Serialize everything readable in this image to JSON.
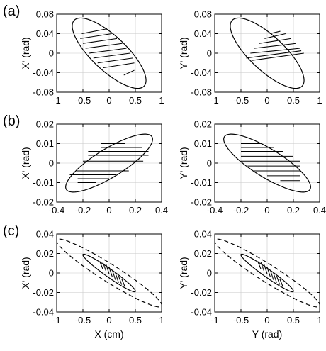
{
  "rows": [
    {
      "label": "(a)",
      "ylabels": [
        "X' (rad)",
        "Y' (rad)"
      ],
      "xlabels": [
        "",
        ""
      ],
      "xlim": [
        -1,
        1
      ],
      "ylim": [
        -0.08,
        0.08
      ],
      "xticks": [
        "-1",
        "-0.5",
        "0",
        "0.5",
        "1"
      ],
      "yticks": [
        "0.08",
        "0.04",
        "0",
        "-0.04",
        "-0.08"
      ]
    },
    {
      "label": "(b)",
      "ylabels": [
        "X' (rad)",
        "Y' (rad)"
      ],
      "xlabels": [
        "",
        ""
      ],
      "xlim": [
        -0.4,
        0.4
      ],
      "ylim": [
        -0.02,
        0.02
      ],
      "xticks": [
        "-0.4",
        "-0.2",
        "0",
        "0.2",
        "0.4"
      ],
      "yticks": [
        "0.02",
        "0.01",
        "0",
        "-0.01",
        "-0.02"
      ]
    },
    {
      "label": "(c)",
      "ylabels": [
        "X' (rad)",
        "Y' (rad)"
      ],
      "xlabels": [
        "X (cm)",
        "Y (rad)"
      ],
      "xlim": [
        -1,
        1
      ],
      "ylim": [
        -0.04,
        0.04
      ],
      "xticks": [
        "-1",
        "-0.5",
        "0",
        "0.5",
        "1"
      ],
      "yticks": [
        "0.04",
        "0.02",
        "0",
        "-0.02",
        "-0.04"
      ]
    }
  ],
  "chart_data": [
    {
      "panel": "a-left",
      "type": "scatter",
      "xlim": [
        -1,
        1
      ],
      "ylim": [
        -0.08,
        0.08
      ],
      "grid": true,
      "ellipses": [
        {
          "style": "solid",
          "cx": 0,
          "cy": 0,
          "ux": [
            -0.7,
            0.06
          ],
          "vx": [
            0.7,
            -0.06
          ],
          "semi_major_end": [
            0.7,
            -0.06
          ],
          "semi_minor_end": [
            -0.07,
            -0.04
          ]
        }
      ],
      "hatch_lines": [
        {
          "x": [
            -0.52,
            -0.04
          ],
          "y": [
            0.04,
            0.05
          ]
        },
        {
          "x": [
            -0.55,
            0.05
          ],
          "y": [
            0.03,
            0.04
          ]
        },
        {
          "x": [
            -0.5,
            0.15
          ],
          "y": [
            0.02,
            0.03
          ]
        },
        {
          "x": [
            -0.45,
            0.25
          ],
          "y": [
            0.01,
            0.02
          ]
        },
        {
          "x": [
            -0.38,
            0.33
          ],
          "y": [
            0.0,
            0.01
          ]
        },
        {
          "x": [
            -0.3,
            0.4
          ],
          "y": [
            -0.01,
            0.0
          ]
        },
        {
          "x": [
            -0.22,
            0.45
          ],
          "y": [
            -0.02,
            -0.01
          ]
        },
        {
          "x": [
            -0.12,
            0.48
          ],
          "y": [
            -0.03,
            -0.02
          ]
        },
        {
          "x": [
            0.28,
            0.48
          ],
          "y": [
            -0.045,
            -0.035
          ]
        }
      ]
    },
    {
      "panel": "a-right",
      "type": "scatter",
      "xlim": [
        -1,
        1
      ],
      "ylim": [
        -0.08,
        0.08
      ],
      "grid": true,
      "ellipses": [
        {
          "style": "solid",
          "cx": 0,
          "cy": 0,
          "semi_major_end": [
            0.7,
            -0.06
          ],
          "semi_minor_end": [
            -0.07,
            -0.04
          ]
        }
      ],
      "hatch_lines": [
        {
          "x": [
            0.05,
            0.25
          ],
          "y": [
            0.04,
            0.045
          ]
        },
        {
          "x": [
            -0.05,
            0.35
          ],
          "y": [
            0.03,
            0.04
          ]
        },
        {
          "x": [
            -0.15,
            0.45
          ],
          "y": [
            0.02,
            0.03
          ]
        },
        {
          "x": [
            -0.25,
            0.55
          ],
          "y": [
            0.01,
            0.02
          ]
        },
        {
          "x": [
            -0.32,
            0.62
          ],
          "y": [
            0.0,
            0.01
          ]
        },
        {
          "x": [
            -0.4,
            0.65
          ],
          "y": [
            -0.01,
            0.005
          ]
        },
        {
          "x": [
            -0.3,
            0.7
          ],
          "y": [
            -0.015,
            0.0
          ]
        }
      ]
    },
    {
      "panel": "b-left",
      "type": "scatter",
      "xlim": [
        -0.4,
        0.4
      ],
      "ylim": [
        -0.02,
        0.02
      ],
      "grid": true,
      "ellipses": [
        {
          "style": "solid",
          "cx": 0,
          "cy": 0,
          "semi_major_end": [
            0.33,
            0.013
          ],
          "semi_minor_end": [
            0.032,
            -0.0072
          ]
        }
      ],
      "hatch_lines": [
        {
          "x": [
            -0.06,
            0.12
          ],
          "y": [
            0.01,
            0.01
          ]
        },
        {
          "x": [
            -0.06,
            0.25
          ],
          "y": [
            0.008,
            0.008
          ]
        },
        {
          "x": [
            -0.16,
            0.3
          ],
          "y": [
            0.006,
            0.006
          ]
        },
        {
          "x": [
            -0.16,
            0.3
          ],
          "y": [
            0.004,
            0.004
          ]
        },
        {
          "x": [
            -0.2,
            0.26
          ],
          "y": [
            0.001,
            0.001
          ]
        },
        {
          "x": [
            -0.25,
            0.22
          ],
          "y": [
            -0.002,
            -0.002
          ]
        },
        {
          "x": [
            -0.25,
            0.15
          ],
          "y": [
            -0.004,
            -0.004
          ]
        },
        {
          "x": [
            -0.3,
            0.05
          ],
          "y": [
            -0.006,
            -0.006
          ]
        },
        {
          "x": [
            -0.24,
            0.0
          ],
          "y": [
            -0.008,
            -0.008
          ]
        },
        {
          "x": [
            -0.24,
            -0.1
          ],
          "y": [
            -0.01,
            -0.01
          ]
        }
      ]
    },
    {
      "panel": "b-right",
      "type": "scatter",
      "xlim": [
        -0.4,
        0.4
      ],
      "ylim": [
        -0.02,
        0.02
      ],
      "grid": true,
      "ellipses": [
        {
          "style": "solid",
          "cx": 0,
          "cy": 0,
          "semi_major_end": [
            0.33,
            -0.013
          ],
          "semi_minor_end": [
            0.032,
            0.0072
          ]
        }
      ],
      "hatch_lines": [
        {
          "x": [
            -0.2,
            -0.05
          ],
          "y": [
            0.01,
            0.01
          ]
        },
        {
          "x": [
            -0.2,
            0.05
          ],
          "y": [
            0.008,
            0.008
          ]
        },
        {
          "x": [
            -0.2,
            0.12
          ],
          "y": [
            0.006,
            0.006
          ]
        },
        {
          "x": [
            -0.2,
            0.2
          ],
          "y": [
            0.0035,
            0.0035
          ]
        },
        {
          "x": [
            -0.2,
            0.25
          ],
          "y": [
            0.001,
            0.001
          ]
        },
        {
          "x": [
            -0.15,
            0.25
          ],
          "y": [
            -0.0015,
            -0.0015
          ]
        },
        {
          "x": [
            -0.1,
            0.25
          ],
          "y": [
            -0.004,
            -0.004
          ]
        },
        {
          "x": [
            0.0,
            0.25
          ],
          "y": [
            -0.0065,
            -0.0065
          ]
        },
        {
          "x": [
            0.1,
            0.25
          ],
          "y": [
            -0.009,
            -0.009
          ]
        }
      ]
    },
    {
      "panel": "c-left",
      "type": "scatter",
      "xlim": [
        -1,
        1
      ],
      "ylim": [
        -0.04,
        0.04
      ],
      "grid": true,
      "ellipses": [
        {
          "style": "dashed",
          "cx": 0,
          "cy": 0,
          "semi_major_end": [
            1.0,
            -0.034
          ],
          "semi_minor_end": [
            0.09,
            0.0076
          ]
        },
        {
          "style": "solid",
          "cx": 0,
          "cy": 0,
          "semi_major_end": [
            0.5,
            -0.019
          ],
          "semi_minor_end": [
            0.04,
            0.0035
          ]
        }
      ],
      "hatch_lines": [
        {
          "x": [
            -0.18,
            -0.12
          ],
          "y": [
            0.012,
            0.004
          ]
        },
        {
          "x": [
            -0.12,
            -0.06
          ],
          "y": [
            0.011,
            0.002
          ]
        },
        {
          "x": [
            -0.06,
            0.0
          ],
          "y": [
            0.009,
            -0.001
          ]
        },
        {
          "x": [
            0.0,
            0.06
          ],
          "y": [
            0.006,
            -0.004
          ]
        },
        {
          "x": [
            0.06,
            0.12
          ],
          "y": [
            0.003,
            -0.007
          ]
        },
        {
          "x": [
            0.12,
            0.18
          ],
          "y": [
            0.0,
            -0.01
          ]
        },
        {
          "x": [
            0.18,
            0.24
          ],
          "y": [
            -0.003,
            -0.012
          ]
        },
        {
          "x": [
            0.24,
            0.3
          ],
          "y": [
            -0.006,
            -0.014
          ]
        }
      ]
    },
    {
      "panel": "c-right",
      "type": "scatter",
      "xlim": [
        -1,
        1
      ],
      "ylim": [
        -0.04,
        0.04
      ],
      "grid": true,
      "ellipses": [
        {
          "style": "dashed",
          "cx": 0,
          "cy": 0,
          "semi_major_end": [
            1.0,
            -0.034
          ],
          "semi_minor_end": [
            0.09,
            0.0076
          ]
        },
        {
          "style": "solid",
          "cx": 0,
          "cy": 0,
          "semi_major_end": [
            0.5,
            -0.019
          ],
          "semi_minor_end": [
            0.04,
            0.0035
          ]
        }
      ],
      "hatch_lines": [
        {
          "x": [
            -0.18,
            -0.12
          ],
          "y": [
            0.012,
            0.004
          ]
        },
        {
          "x": [
            -0.12,
            -0.06
          ],
          "y": [
            0.011,
            0.002
          ]
        },
        {
          "x": [
            -0.06,
            0.0
          ],
          "y": [
            0.009,
            -0.001
          ]
        },
        {
          "x": [
            0.0,
            0.06
          ],
          "y": [
            0.006,
            -0.004
          ]
        },
        {
          "x": [
            0.06,
            0.12
          ],
          "y": [
            0.003,
            -0.007
          ]
        },
        {
          "x": [
            0.12,
            0.18
          ],
          "y": [
            0.0,
            -0.01
          ]
        },
        {
          "x": [
            0.18,
            0.24
          ],
          "y": [
            -0.003,
            -0.012
          ]
        },
        {
          "x": [
            0.24,
            0.3
          ],
          "y": [
            -0.006,
            -0.014
          ]
        }
      ]
    }
  ]
}
